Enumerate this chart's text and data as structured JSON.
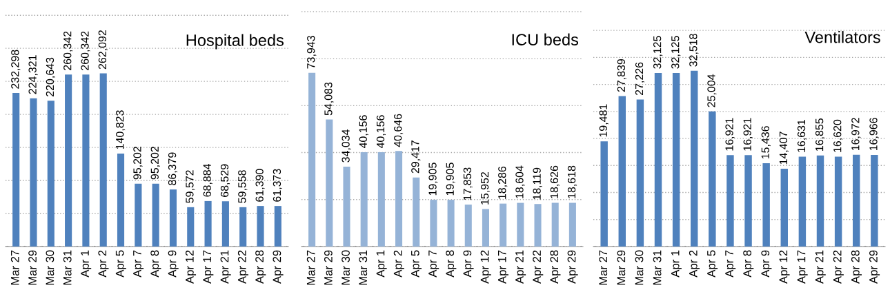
{
  "chart_data": [
    {
      "type": "bar",
      "title": "Hospital beds",
      "categories": [
        "Mar 27",
        "Mar 29",
        "Mar 30",
        "Mar 31",
        "Apr 1",
        "Apr 2",
        "Apr 5",
        "Apr 7",
        "Apr 8",
        "Apr 9",
        "Apr 12",
        "Apr 17",
        "Apr 21",
        "Apr 22",
        "Apr 28",
        "Apr 29"
      ],
      "values": [
        232298,
        224321,
        220643,
        260342,
        260342,
        262092,
        140823,
        95202,
        95202,
        86379,
        59572,
        68884,
        68529,
        59558,
        61390,
        61373
      ],
      "value_labels": [
        "232,298",
        "224,321",
        "220,643",
        "260,342",
        "260,342",
        "262,092",
        "140,823",
        "95,202",
        "95,202",
        "86,379",
        "59,572",
        "68,884",
        "68,529",
        "59,558",
        "61,390",
        "61,373"
      ],
      "color": "#4f81bd",
      "grid": "y",
      "tick_labels": "x"
    },
    {
      "type": "bar",
      "title": "ICU beds",
      "categories": [
        "Mar 27",
        "Mar 29",
        "Mar 30",
        "Mar 31",
        "Apr 1",
        "Apr 2",
        "Apr 5",
        "Apr 7",
        "Apr 8",
        "Apr 9",
        "Apr 12",
        "Apr 17",
        "Apr 21",
        "Apr 22",
        "Apr 28",
        "Apr 29"
      ],
      "values": [
        73943,
        54083,
        34034,
        40156,
        40156,
        40646,
        29417,
        19905,
        19905,
        17853,
        15952,
        18286,
        18604,
        18119,
        18626,
        18618
      ],
      "value_labels": [
        "73,943",
        "54,083",
        "34,034",
        "40,156",
        "40,156",
        "40,646",
        "29,417",
        "19,905",
        "19,905",
        "17,853",
        "15,952",
        "18,286",
        "18,604",
        "18,119",
        "18,626",
        "18,618"
      ],
      "color": "#95b3d7",
      "grid": "y",
      "tick_labels": "x"
    },
    {
      "type": "bar",
      "title": "Ventilators",
      "categories": [
        "Mar 27",
        "Mar 29",
        "Mar 30",
        "Mar 31",
        "Apr 1",
        "Apr 2",
        "Apr 5",
        "Apr 7",
        "Apr 8",
        "Apr 9",
        "Apr 12",
        "Apr 17",
        "Apr 21",
        "Apr 22",
        "Apr 28",
        "Apr 29"
      ],
      "values": [
        19481,
        27839,
        27226,
        32125,
        32125,
        32518,
        25004,
        16921,
        16921,
        15436,
        14407,
        16631,
        16855,
        16620,
        16972,
        16966
      ],
      "value_labels": [
        "19,481",
        "27,839",
        "27,226",
        "32,125",
        "32,125",
        "32,518",
        "25,004",
        "16,921",
        "16,921",
        "15,436",
        "14,407",
        "16,631",
        "16,855",
        "16,620",
        "16,972",
        "16,966"
      ],
      "color": "#4f81bd",
      "grid": "y",
      "tick_labels": "x"
    }
  ]
}
